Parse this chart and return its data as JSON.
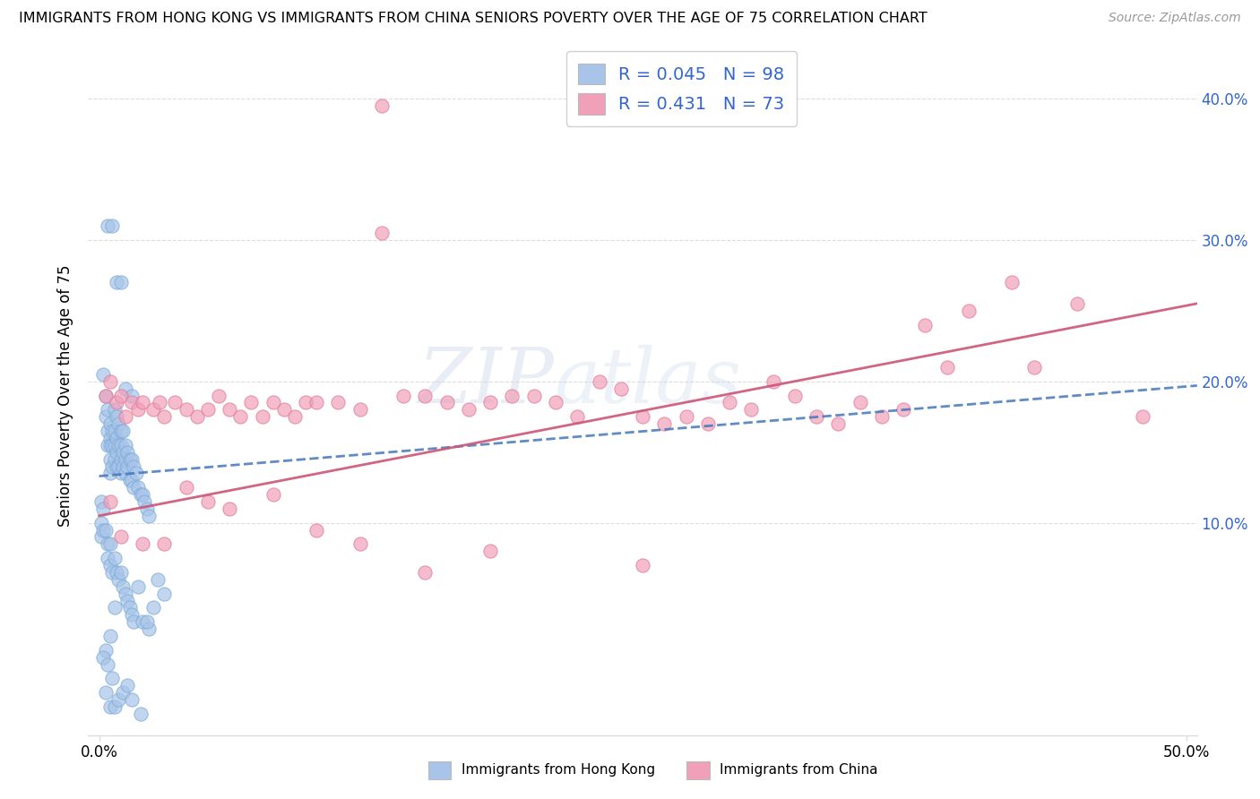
{
  "title": "IMMIGRANTS FROM HONG KONG VS IMMIGRANTS FROM CHINA SENIORS POVERTY OVER THE AGE OF 75 CORRELATION CHART",
  "source": "Source: ZipAtlas.com",
  "ylabel": "Seniors Poverty Over the Age of 75",
  "xlim": [
    -0.005,
    0.505
  ],
  "ylim": [
    -0.05,
    0.43
  ],
  "x_tick_positions": [
    0.0,
    0.5
  ],
  "x_tick_labels": [
    "0.0%",
    "50.0%"
  ],
  "y_tick_positions": [
    0.1,
    0.2,
    0.3,
    0.4
  ],
  "y_tick_labels": [
    "10.0%",
    "20.0%",
    "30.0%",
    "40.0%"
  ],
  "hk_color": "#a8c4e8",
  "hk_edge_color": "#7aaad8",
  "china_color": "#f0a0b8",
  "china_edge_color": "#e07898",
  "hk_line_color": "#4477bb",
  "china_line_color": "#cc5577",
  "hk_R": 0.045,
  "hk_N": 98,
  "china_R": 0.431,
  "china_N": 73,
  "background_color": "#ffffff",
  "watermark": "ZIPatlas",
  "grid_color": "#dddddd",
  "legend_text_color": "#3366cc",
  "hk_scatter_x": [
    0.002,
    0.003,
    0.003,
    0.004,
    0.004,
    0.004,
    0.005,
    0.005,
    0.005,
    0.005,
    0.005,
    0.006,
    0.006,
    0.006,
    0.007,
    0.007,
    0.007,
    0.007,
    0.008,
    0.008,
    0.008,
    0.008,
    0.009,
    0.009,
    0.009,
    0.01,
    0.01,
    0.01,
    0.01,
    0.011,
    0.011,
    0.011,
    0.012,
    0.012,
    0.012,
    0.013,
    0.013,
    0.014,
    0.014,
    0.015,
    0.015,
    0.016,
    0.016,
    0.017,
    0.018,
    0.019,
    0.02,
    0.021,
    0.022,
    0.023,
    0.001,
    0.001,
    0.001,
    0.002,
    0.002,
    0.003,
    0.004,
    0.004,
    0.005,
    0.005,
    0.006,
    0.007,
    0.008,
    0.009,
    0.01,
    0.011,
    0.012,
    0.013,
    0.014,
    0.015,
    0.016,
    0.02,
    0.023,
    0.025,
    0.027,
    0.03,
    0.004,
    0.006,
    0.008,
    0.01,
    0.012,
    0.015,
    0.018,
    0.022,
    0.007,
    0.005,
    0.003,
    0.002,
    0.004,
    0.006,
    0.003,
    0.005,
    0.007,
    0.009,
    0.011,
    0.013,
    0.015,
    0.019
  ],
  "hk_scatter_y": [
    0.205,
    0.19,
    0.175,
    0.165,
    0.155,
    0.18,
    0.17,
    0.16,
    0.155,
    0.145,
    0.135,
    0.165,
    0.155,
    0.14,
    0.18,
    0.165,
    0.155,
    0.145,
    0.175,
    0.16,
    0.15,
    0.14,
    0.17,
    0.155,
    0.14,
    0.165,
    0.155,
    0.145,
    0.135,
    0.165,
    0.15,
    0.14,
    0.155,
    0.145,
    0.135,
    0.15,
    0.14,
    0.145,
    0.13,
    0.145,
    0.13,
    0.14,
    0.125,
    0.135,
    0.125,
    0.12,
    0.12,
    0.115,
    0.11,
    0.105,
    0.115,
    0.1,
    0.09,
    0.11,
    0.095,
    0.095,
    0.085,
    0.075,
    0.085,
    0.07,
    0.065,
    0.075,
    0.065,
    0.06,
    0.065,
    0.055,
    0.05,
    0.045,
    0.04,
    0.035,
    0.03,
    0.03,
    0.025,
    0.04,
    0.06,
    0.05,
    0.31,
    0.31,
    0.27,
    0.27,
    0.195,
    0.19,
    0.055,
    0.03,
    0.04,
    0.02,
    0.01,
    0.005,
    0.0,
    -0.01,
    -0.02,
    -0.03,
    -0.03,
    -0.025,
    -0.02,
    -0.015,
    -0.025,
    -0.035
  ],
  "china_scatter_x": [
    0.003,
    0.005,
    0.008,
    0.01,
    0.012,
    0.015,
    0.018,
    0.02,
    0.025,
    0.028,
    0.03,
    0.035,
    0.04,
    0.045,
    0.05,
    0.055,
    0.06,
    0.065,
    0.07,
    0.075,
    0.08,
    0.085,
    0.09,
    0.095,
    0.1,
    0.11,
    0.12,
    0.13,
    0.14,
    0.15,
    0.16,
    0.17,
    0.18,
    0.19,
    0.2,
    0.21,
    0.22,
    0.23,
    0.24,
    0.25,
    0.26,
    0.27,
    0.28,
    0.29,
    0.3,
    0.31,
    0.32,
    0.33,
    0.34,
    0.35,
    0.36,
    0.37,
    0.38,
    0.39,
    0.4,
    0.42,
    0.43,
    0.45,
    0.48,
    0.005,
    0.01,
    0.02,
    0.03,
    0.04,
    0.05,
    0.06,
    0.08,
    0.1,
    0.12,
    0.13,
    0.15,
    0.18,
    0.25
  ],
  "china_scatter_y": [
    0.19,
    0.2,
    0.185,
    0.19,
    0.175,
    0.185,
    0.18,
    0.185,
    0.18,
    0.185,
    0.175,
    0.185,
    0.18,
    0.175,
    0.18,
    0.19,
    0.18,
    0.175,
    0.185,
    0.175,
    0.185,
    0.18,
    0.175,
    0.185,
    0.185,
    0.185,
    0.18,
    0.305,
    0.19,
    0.19,
    0.185,
    0.18,
    0.185,
    0.19,
    0.19,
    0.185,
    0.175,
    0.2,
    0.195,
    0.175,
    0.17,
    0.175,
    0.17,
    0.185,
    0.18,
    0.2,
    0.19,
    0.175,
    0.17,
    0.185,
    0.175,
    0.18,
    0.24,
    0.21,
    0.25,
    0.27,
    0.21,
    0.255,
    0.175,
    0.115,
    0.09,
    0.085,
    0.085,
    0.125,
    0.115,
    0.11,
    0.12,
    0.095,
    0.085,
    0.395,
    0.065,
    0.08,
    0.07
  ],
  "hk_line_x0": 0.0,
  "hk_line_x1": 0.505,
  "hk_line_y0": 0.133,
  "hk_line_y1": 0.197,
  "china_line_x0": 0.0,
  "china_line_x1": 0.505,
  "china_line_y0": 0.105,
  "china_line_y1": 0.255
}
